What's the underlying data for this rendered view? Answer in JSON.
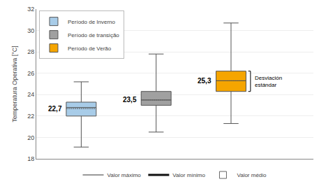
{
  "chart_data": {
    "type": "box",
    "ylabel": "Temperatura Operativa [°C]",
    "ylim": [
      18,
      32
    ],
    "yticks": [
      18,
      20,
      22,
      24,
      26,
      28,
      30,
      32
    ],
    "grid": true,
    "legend": "upper left",
    "tick_labels": "y",
    "series": [
      {
        "name": "Período de Inverno",
        "color": "#a8cce8",
        "q1": 22.0,
        "median": 22.8,
        "q3": 23.3,
        "whisker_low": 19.1,
        "whisker_high": 25.2,
        "mean": 22.7,
        "mean_label": "22,7"
      },
      {
        "name": "Período de transição",
        "color": "#a0a0a0",
        "q1": 23.0,
        "median": 23.5,
        "q3": 24.3,
        "whisker_low": 20.5,
        "whisker_high": 27.8,
        "mean": 23.5,
        "mean_label": "23,5"
      },
      {
        "name": "Período de Verão",
        "color": "#f5a500",
        "q1": 24.3,
        "median": 25.3,
        "q3": 26.2,
        "whisker_low": 21.3,
        "whisker_high": 30.7,
        "mean": 25.3,
        "mean_label": "25,3"
      }
    ],
    "annotation": "Desviación\nestándar",
    "annotation_series": 2,
    "bottom_labels": [
      "Valor máximo",
      "Valor mínimo",
      "Valor médio"
    ]
  }
}
